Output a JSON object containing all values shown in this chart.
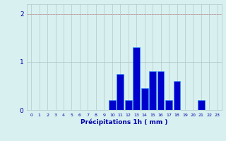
{
  "categories": [
    0,
    1,
    2,
    3,
    4,
    5,
    6,
    7,
    8,
    9,
    10,
    11,
    12,
    13,
    14,
    15,
    16,
    17,
    18,
    19,
    20,
    21,
    22,
    23
  ],
  "values": [
    0,
    0,
    0,
    0,
    0,
    0,
    0,
    0,
    0,
    0,
    0.2,
    0.75,
    0.2,
    1.3,
    0.45,
    0.8,
    0.8,
    0.2,
    0.6,
    0,
    0,
    0.2,
    0,
    0
  ],
  "bar_color": "#0000cc",
  "bar_edge_color": "#3399ff",
  "background_color": "#d8f0f0",
  "grid_color": "#b0c8c8",
  "axis_color": "#0000aa",
  "xlabel": "Précipitations 1h ( mm )",
  "ylim": [
    0,
    2.2
  ],
  "yticks": [
    0,
    1,
    2
  ],
  "ytick_labels": [
    "0",
    "1",
    "2"
  ],
  "xlim": [
    -0.5,
    23.5
  ]
}
